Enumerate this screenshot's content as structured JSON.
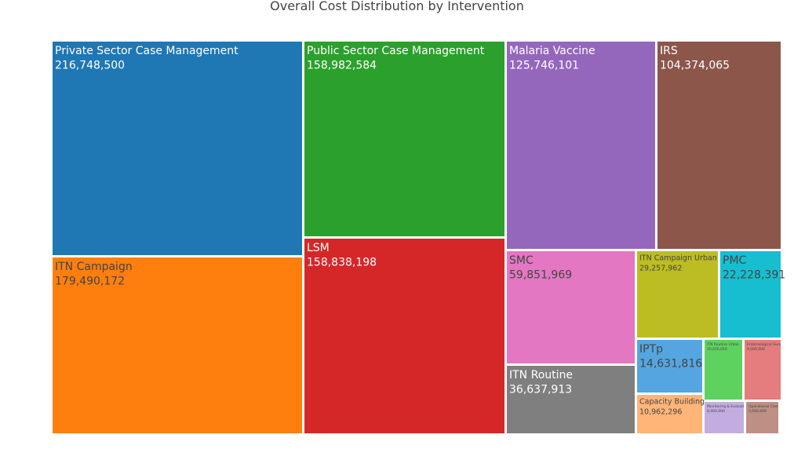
{
  "chart_data": {
    "type": "treemap",
    "title": "Overall Cost Distribution by Intervention",
    "nodes": [
      {
        "key": "pscm",
        "label": "Private Sector Case Management",
        "value": 216748500,
        "value_text": "216,748,500",
        "color": "#1f77b4",
        "text_color": "#ffffff"
      },
      {
        "key": "itnc",
        "label": "ITN Campaign",
        "value": 179490172,
        "value_text": "179,490,172",
        "color": "#ff7f0e",
        "text_color": "#444444"
      },
      {
        "key": "pubscm",
        "label": "Public Sector Case Management",
        "value": 158982584,
        "value_text": "158,982,584",
        "color": "#2ca02c",
        "text_color": "#ffffff"
      },
      {
        "key": "lsm",
        "label": "LSM",
        "value": 158838198,
        "value_text": "158,838,198",
        "color": "#d62728",
        "text_color": "#ffffff"
      },
      {
        "key": "vaccine",
        "label": "Malaria Vaccine",
        "value": 125746101,
        "value_text": "125,746,101",
        "color": "#9467bd",
        "text_color": "#ffffff"
      },
      {
        "key": "irs",
        "label": "IRS",
        "value": 104374065,
        "value_text": "104,374,065",
        "color": "#8c564b",
        "text_color": "#ffffff"
      },
      {
        "key": "smc",
        "label": "SMC",
        "value": 59851969,
        "value_text": "59,851,969",
        "color": "#e377c2",
        "text_color": "#444444"
      },
      {
        "key": "itnr",
        "label": "ITN Routine",
        "value": 36637913,
        "value_text": "36,637,913",
        "color": "#7f7f7f",
        "text_color": "#ffffff"
      },
      {
        "key": "itncu",
        "label": "ITN Campaign Urban",
        "value": 29257962,
        "value_text": "29,257,962",
        "color": "#bcbd22",
        "text_color": "#444444"
      },
      {
        "key": "pmc",
        "label": "PMC",
        "value": 22228391,
        "value_text": "22,228,391",
        "color": "#17becf",
        "text_color": "#444444"
      },
      {
        "key": "iptp",
        "label": "IPTp",
        "value": 14631816,
        "value_text": "14,631,816",
        "color": "#55a6e0",
        "text_color": "#444444"
      },
      {
        "key": "cap",
        "label": "Capacity Building",
        "value": 10962296,
        "value_text": "10,962,296",
        "color": "#ffb478",
        "text_color": "#444444"
      },
      {
        "key": "itnru",
        "label": "ITN Routine Urban",
        "value": 10016010,
        "value_text": "10,016,010",
        "color": "#5ed25e",
        "text_color": "#444444"
      },
      {
        "key": "entomo",
        "label": "Entomological Surveillance",
        "value": 9000000,
        "value_text": "9,000,000",
        "color": "#e57c7d",
        "text_color": "#444444"
      },
      {
        "key": "me",
        "label": "Monitoring & Evaluation",
        "value": 6000000,
        "value_text": "6,000,000",
        "color": "#c3ade0",
        "text_color": "#444444"
      },
      {
        "key": "ops",
        "label": "Operational Costs",
        "value": 5000000,
        "value_text": "5,000,000",
        "color": "#be8f85",
        "text_color": "#444444"
      }
    ]
  }
}
